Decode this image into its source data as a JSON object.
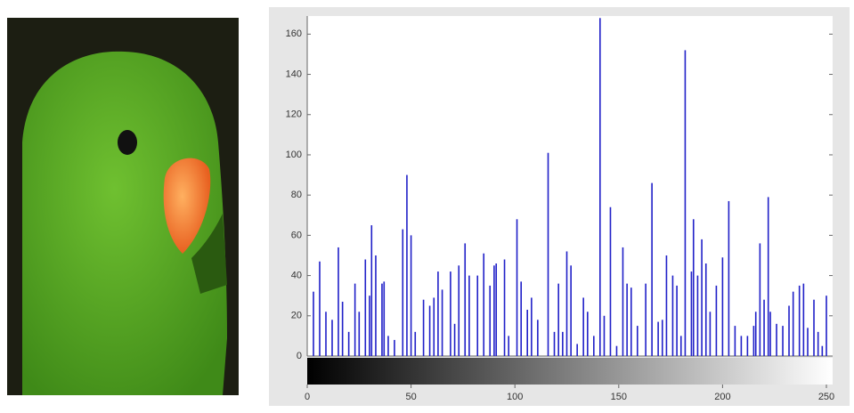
{
  "chart_data": {
    "type": "bar",
    "x": [
      3,
      6,
      9,
      12,
      15,
      17,
      20,
      23,
      25,
      28,
      30,
      31,
      33,
      36,
      37,
      39,
      42,
      46,
      48,
      50,
      52,
      56,
      59,
      61,
      63,
      65,
      69,
      71,
      73,
      76,
      78,
      82,
      85,
      88,
      90,
      91,
      95,
      97,
      101,
      103,
      106,
      108,
      111,
      116,
      119,
      121,
      123,
      125,
      127,
      130,
      133,
      135,
      138,
      141,
      143,
      146,
      149,
      152,
      154,
      156,
      159,
      163,
      166,
      169,
      171,
      173,
      176,
      178,
      180,
      182,
      185,
      186,
      188,
      190,
      192,
      194,
      197,
      200,
      203,
      206,
      209,
      212,
      215,
      216,
      218,
      220,
      222,
      223,
      226,
      229,
      232,
      234,
      237,
      239,
      241,
      244,
      246,
      248,
      250
    ],
    "values": [
      32,
      47,
      22,
      18,
      54,
      27,
      12,
      36,
      22,
      48,
      30,
      65,
      50,
      36,
      37,
      10,
      8,
      63,
      90,
      60,
      12,
      28,
      25,
      29,
      42,
      33,
      42,
      16,
      45,
      56,
      40,
      40,
      51,
      35,
      45,
      46,
      48,
      10,
      68,
      37,
      23,
      29,
      18,
      101,
      12,
      36,
      12,
      52,
      45,
      6,
      29,
      22,
      10,
      168,
      20,
      74,
      5,
      54,
      36,
      34,
      15,
      36,
      86,
      17,
      18,
      50,
      40,
      35,
      10,
      152,
      42,
      68,
      40,
      58,
      46,
      22,
      35,
      49,
      77,
      15,
      10,
      10,
      15,
      22,
      56,
      28,
      79,
      22,
      16,
      15,
      25,
      32,
      35,
      36,
      14,
      28,
      12,
      5,
      30
    ],
    "color": "#2020c8",
    "xlim": [
      0,
      253
    ],
    "xticks": [
      0,
      50,
      100,
      150,
      200,
      250
    ],
    "ylim": [
      0,
      169
    ],
    "yticks": [
      0,
      20,
      40,
      60,
      80,
      100,
      120,
      140,
      160
    ]
  }
}
